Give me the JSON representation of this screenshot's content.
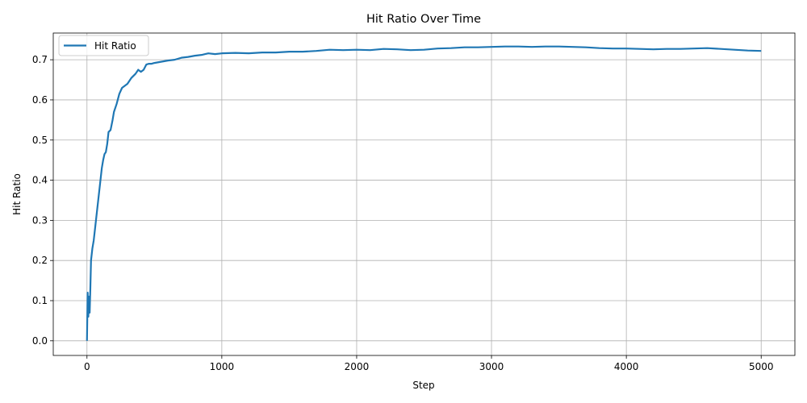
{
  "chart_data": {
    "type": "line",
    "title": "Hit Ratio Over Time",
    "xlabel": "Step",
    "ylabel": "Hit Ratio",
    "xlim": [
      -250,
      5250
    ],
    "ylim": [
      -0.0365,
      0.7665
    ],
    "xticks": [
      0,
      1000,
      2000,
      3000,
      4000,
      5000
    ],
    "yticks": [
      0.0,
      0.1,
      0.2,
      0.3,
      0.4,
      0.5,
      0.6,
      0.7
    ],
    "xtick_labels": [
      "0",
      "1000",
      "2000",
      "3000",
      "4000",
      "5000"
    ],
    "ytick_labels": [
      "0.0",
      "0.1",
      "0.2",
      "0.3",
      "0.4",
      "0.5",
      "0.6",
      "0.7"
    ],
    "grid": true,
    "legend_position": "top-left",
    "series": [
      {
        "name": "Hit Ratio",
        "color": "#1f77b4",
        "x": [
          0,
          5,
          10,
          15,
          20,
          25,
          30,
          40,
          50,
          60,
          70,
          80,
          90,
          100,
          110,
          120,
          130,
          140,
          150,
          160,
          175,
          190,
          200,
          220,
          240,
          260,
          280,
          300,
          330,
          360,
          380,
          400,
          420,
          440,
          460,
          480,
          500,
          550,
          600,
          650,
          700,
          750,
          800,
          850,
          900,
          950,
          1000,
          1100,
          1200,
          1300,
          1400,
          1500,
          1600,
          1700,
          1800,
          1900,
          2000,
          2100,
          2200,
          2300,
          2400,
          2500,
          2600,
          2700,
          2800,
          2900,
          3000,
          3100,
          3200,
          3300,
          3400,
          3500,
          3600,
          3700,
          3800,
          3900,
          4000,
          4100,
          4200,
          4300,
          4400,
          4500,
          4600,
          4700,
          4800,
          4900,
          5000
        ],
        "values": [
          0.0,
          0.12,
          0.06,
          0.11,
          0.07,
          0.13,
          0.2,
          0.23,
          0.25,
          0.28,
          0.31,
          0.34,
          0.37,
          0.4,
          0.43,
          0.45,
          0.465,
          0.47,
          0.49,
          0.52,
          0.525,
          0.55,
          0.57,
          0.59,
          0.615,
          0.63,
          0.635,
          0.64,
          0.655,
          0.665,
          0.675,
          0.67,
          0.675,
          0.688,
          0.69,
          0.69,
          0.692,
          0.695,
          0.698,
          0.7,
          0.705,
          0.707,
          0.71,
          0.712,
          0.716,
          0.714,
          0.716,
          0.717,
          0.716,
          0.718,
          0.718,
          0.72,
          0.72,
          0.722,
          0.725,
          0.724,
          0.725,
          0.724,
          0.727,
          0.726,
          0.724,
          0.725,
          0.728,
          0.729,
          0.731,
          0.731,
          0.732,
          0.733,
          0.733,
          0.732,
          0.733,
          0.733,
          0.732,
          0.731,
          0.729,
          0.728,
          0.728,
          0.727,
          0.726,
          0.727,
          0.727,
          0.728,
          0.729,
          0.727,
          0.725,
          0.723,
          0.722
        ]
      }
    ]
  }
}
